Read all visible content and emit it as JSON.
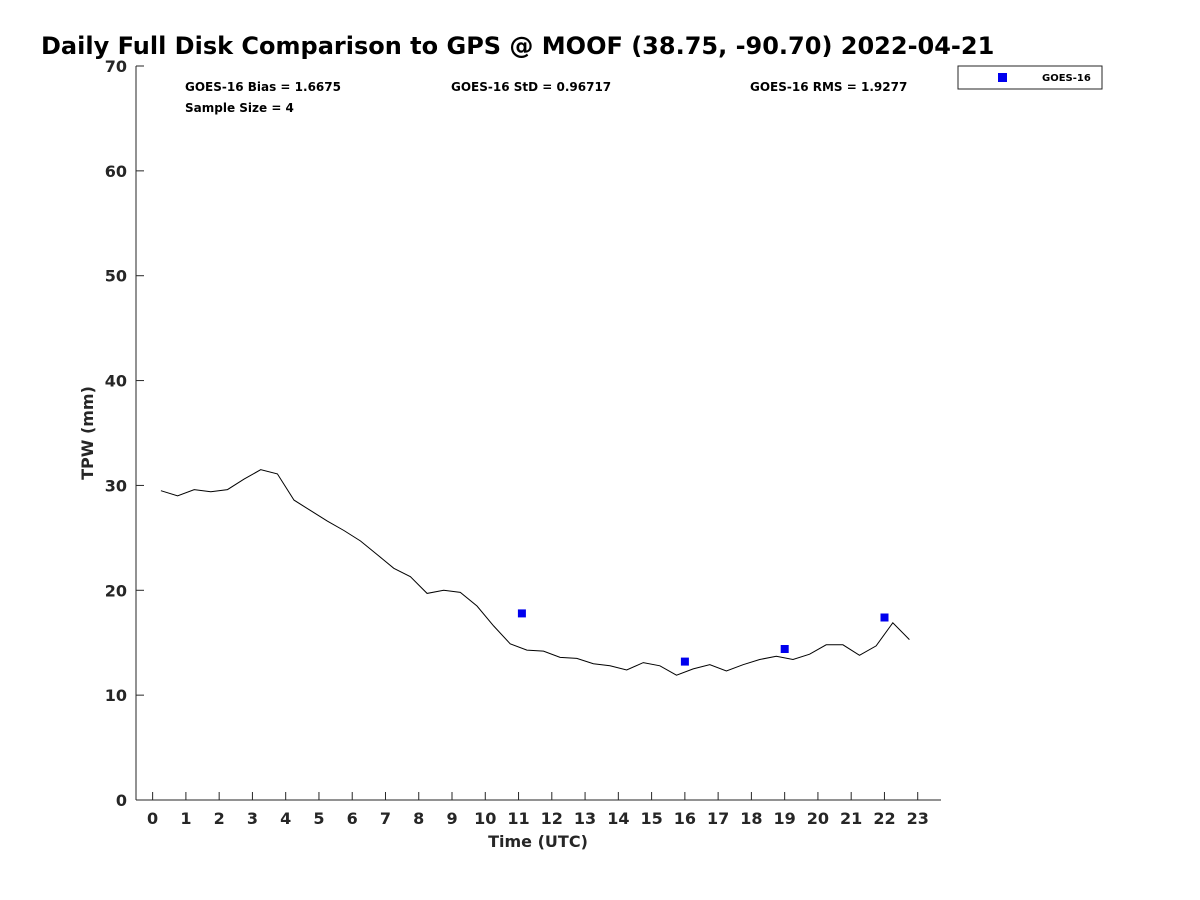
{
  "chart_data": {
    "type": "scatter",
    "title": "Daily Full Disk Comparison to GPS @ MOOF (38.75, -90.70) 2022-04-21",
    "xlabel": "Time (UTC)",
    "ylabel": "TPW (mm)",
    "xlim": [
      -0.5,
      23.7
    ],
    "ylim": [
      0,
      70
    ],
    "x_ticks": [
      0,
      1,
      2,
      3,
      4,
      5,
      6,
      7,
      8,
      9,
      10,
      11,
      12,
      13,
      14,
      15,
      16,
      17,
      18,
      19,
      20,
      21,
      22,
      23
    ],
    "y_ticks": [
      0,
      10,
      20,
      30,
      40,
      50,
      60,
      70
    ],
    "grid": false,
    "legend_position": "outside-top-right",
    "stats": {
      "bias": "GOES-16 Bias = 1.6675",
      "std": "GOES-16 StD = 0.96717",
      "rms": "GOES-16 RMS = 1.9277",
      "sample": "Sample Size = 4"
    },
    "series": [
      {
        "kind": "line",
        "color": "#000000",
        "x": [
          0.25,
          0.75,
          1.25,
          1.75,
          2.25,
          2.75,
          3.25,
          3.75,
          4.25,
          4.75,
          5.25,
          5.75,
          6.25,
          6.75,
          7.25,
          7.75,
          8.25,
          8.75,
          9.25,
          9.75,
          10.25,
          10.75,
          11.25,
          11.75,
          12.25,
          12.75,
          13.25,
          13.75,
          14.25,
          14.75,
          15.25,
          15.75,
          16.25,
          16.75,
          17.25,
          17.75,
          18.25,
          18.75,
          19.25,
          19.75,
          20.25,
          20.75,
          21.25,
          21.75,
          22.25,
          22.75
        ],
        "y": [
          29.5,
          29.0,
          29.6,
          29.4,
          29.6,
          30.6,
          31.5,
          31.1,
          28.6,
          27.6,
          26.6,
          25.7,
          24.7,
          23.4,
          22.1,
          21.3,
          19.7,
          20.0,
          19.8,
          18.5,
          16.6,
          14.9,
          14.3,
          14.2,
          13.6,
          13.5,
          13.0,
          12.8,
          12.4,
          13.1,
          12.8,
          11.9,
          12.5,
          12.9,
          12.3,
          12.9,
          13.4,
          13.7,
          13.4,
          13.9,
          14.8,
          14.8,
          13.8,
          14.7,
          16.9,
          15.3
        ]
      },
      {
        "name": "GOES-16",
        "kind": "marker",
        "color": "#0000ee",
        "x": [
          11.1,
          16.0,
          19.0,
          22.0
        ],
        "y": [
          17.8,
          13.2,
          14.4,
          17.4
        ]
      }
    ]
  }
}
